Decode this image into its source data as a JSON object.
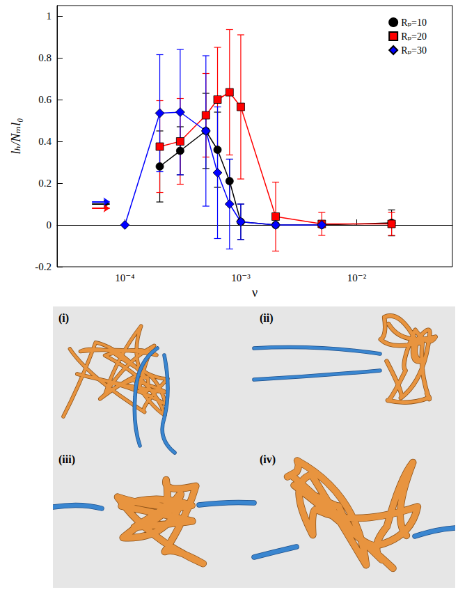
{
  "chart_data": {
    "type": "line",
    "x_label": "ν",
    "y_label": "lₕ/Nₘl₀",
    "log": "x",
    "grid": false,
    "legend": "upper right",
    "xlim": [
      2.6e-05,
      0.067
    ],
    "xticks": [
      {
        "value": 0.0001,
        "label": "10⁻⁴"
      },
      {
        "value": 0.001,
        "label": "10⁻³"
      },
      {
        "value": 0.01,
        "label": "10⁻²"
      }
    ],
    "ylim": [
      -0.2,
      1.05
    ],
    "yticks": [
      -0.2,
      0,
      0.2,
      0.4,
      0.6,
      0.8,
      1
    ],
    "arrow_x": [
      5.2e-05,
      7.4e-05
    ],
    "series": [
      {
        "name": "Rₚ=10",
        "color": "#000000",
        "marker": "circle",
        "x": [
          0.0002,
          0.0003,
          0.0005,
          0.00063,
          0.0008,
          0.001,
          0.002,
          0.005,
          0.02
        ],
        "values": [
          0.28,
          0.355,
          0.45,
          0.36,
          0.21,
          0.015,
          0.0,
          0.0,
          0.01
        ],
        "errors": [
          0.17,
          0.115,
          0.18,
          0.18,
          0.105,
          0.085,
          null,
          null,
          0.062
        ],
        "arrow_y": 0.102
      },
      {
        "name": "Rₚ=20",
        "color": "#ff0000",
        "marker": "square",
        "x": [
          0.0002,
          0.0003,
          0.0005,
          0.00063,
          0.0008,
          0.001,
          0.002,
          0.005,
          0.02
        ],
        "values": [
          0.375,
          0.4,
          0.525,
          0.6,
          0.635,
          0.565,
          0.04,
          0.005,
          0.005
        ],
        "errors": [
          0.22,
          0.205,
          0.2,
          0.25,
          0.3,
          0.345,
          0.165,
          0.055,
          0.055
        ],
        "arrow_y": 0.08
      },
      {
        "name": "Rₚ=30",
        "color": "#0000ff",
        "marker": "diamond",
        "x": [
          0.0001,
          0.0002,
          0.0003,
          0.0005,
          0.00063,
          0.0008,
          0.001,
          0.002,
          0.005
        ],
        "values": [
          0.0,
          0.535,
          0.54,
          0.45,
          0.25,
          0.1,
          0.015,
          0.0,
          0.0
        ],
        "errors": [
          null,
          0.28,
          0.3,
          0.36,
          0.315,
          0.215,
          0.085,
          null,
          null
        ],
        "arrow_y": 0.112
      }
    ]
  },
  "image_panels": {
    "labels": [
      "(i)",
      "(ii)",
      "(iii)",
      "(iv)"
    ]
  }
}
